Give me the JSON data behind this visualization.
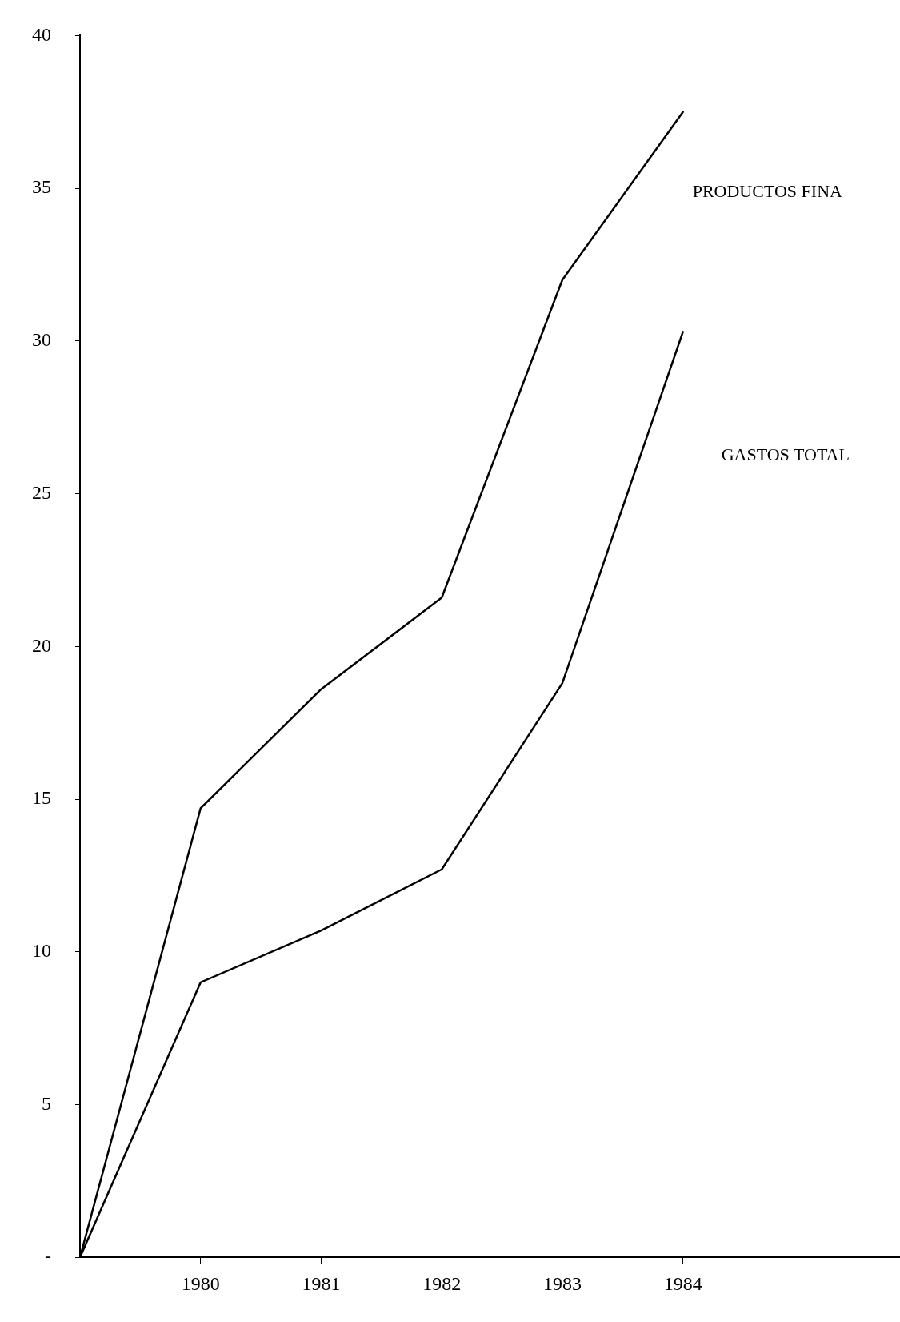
{
  "chart_data": {
    "type": "line",
    "x": [
      1979,
      1980,
      1981,
      1982,
      1983,
      1984
    ],
    "series": [
      {
        "name": "PRODUCTOS FINA",
        "color": "#000000",
        "values": [
          0,
          14.7,
          18.6,
          21.6,
          32.0,
          37.5
        ]
      },
      {
        "name": "GASTOS TOTAL",
        "color": "#000000",
        "values": [
          0,
          9.0,
          10.7,
          12.7,
          18.8,
          30.3
        ]
      }
    ],
    "xlim": [
      1979,
      1985.8
    ],
    "xticks": [
      1980,
      1981,
      1982,
      1983,
      1984
    ],
    "ylim": [
      0,
      40
    ],
    "yticks": [
      {
        "value": 0,
        "label": "-"
      },
      5,
      10,
      15,
      20,
      25,
      30,
      35,
      40
    ],
    "marker": "none",
    "line_style": "solid",
    "legend": false
  }
}
